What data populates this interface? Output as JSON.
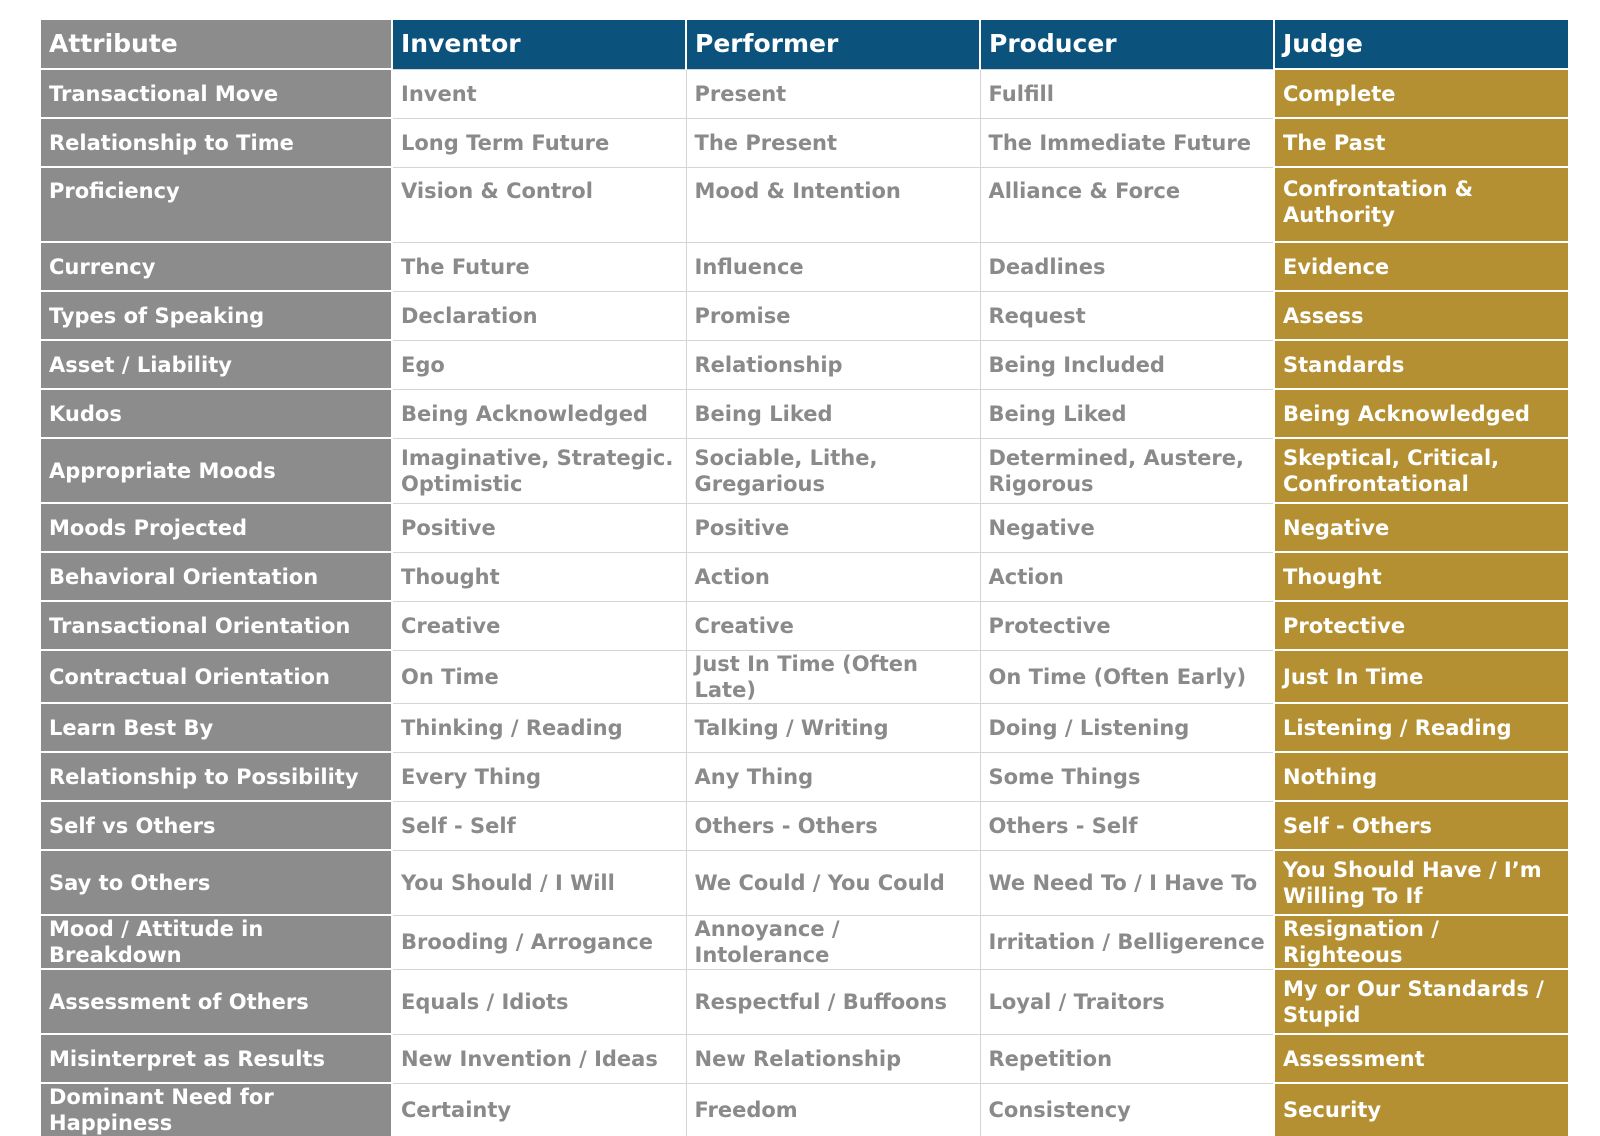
{
  "columns": {
    "attribute": "Attribute",
    "inventor": "Inventor",
    "performer": "Performer",
    "producer": "Producer",
    "judge": "Judge"
  },
  "colors": {
    "header_blue": "#0b527c",
    "attribute_grey": "#8c8c8c",
    "judge_gold": "#b49032",
    "body_text_grey": "#8a8a8a"
  },
  "rows": [
    {
      "attribute": "Transactional Move",
      "inventor": "Invent",
      "performer": "Present",
      "producer": "Fulfill",
      "judge": "Complete"
    },
    {
      "attribute": "Relationship to Time",
      "inventor": "Long Term Future",
      "performer": "The Present",
      "producer": "The Immediate Future",
      "judge": "The Past"
    },
    {
      "attribute": "Proficiency",
      "inventor": "Vision & Control",
      "performer": "Mood & Intention",
      "producer": "Alliance & Force",
      "judge": "Confrontation & Authority"
    },
    {
      "attribute": "Currency",
      "inventor": "The Future",
      "performer": "Influence",
      "producer": "Deadlines",
      "judge": "Evidence"
    },
    {
      "attribute": "Types of Speaking",
      "inventor": "Declaration",
      "performer": "Promise",
      "producer": "Request",
      "judge": "Assess"
    },
    {
      "attribute": "Asset / Liability",
      "inventor": "Ego",
      "performer": "Relationship",
      "producer": "Being Included",
      "judge": "Standards"
    },
    {
      "attribute": "Kudos",
      "inventor": "Being Acknowledged",
      "performer": "Being Liked",
      "producer": "Being Liked",
      "judge": "Being Acknowledged"
    },
    {
      "attribute": "Appropriate Moods",
      "inventor": "Imaginative, Strategic. Optimistic",
      "performer": "Sociable, Lithe, Gregarious",
      "producer": "Determined, Austere, Rigorous",
      "judge": "Skeptical, Critical, Confrontational"
    },
    {
      "attribute": "Moods Projected",
      "inventor": "Positive",
      "performer": "Positive",
      "producer": "Negative",
      "judge": "Negative"
    },
    {
      "attribute": "Behavioral Orientation",
      "inventor": "Thought",
      "performer": "Action",
      "producer": "Action",
      "judge": "Thought"
    },
    {
      "attribute": "Transactional Orientation",
      "inventor": "Creative",
      "performer": "Creative",
      "producer": "Protective",
      "judge": "Protective"
    },
    {
      "attribute": "Contractual Orientation",
      "inventor": "On Time",
      "performer": "Just In Time (Often Late)",
      "producer": "On Time (Often Early)",
      "judge": "Just In Time"
    },
    {
      "attribute": "Learn Best By",
      "inventor": "Thinking / Reading",
      "performer": "Talking / Writing",
      "producer": "Doing / Listening",
      "judge": "Listening / Reading"
    },
    {
      "attribute": "Relationship to Possibility",
      "inventor": "Every Thing",
      "performer": "Any Thing",
      "producer": "Some Things",
      "judge": "Nothing"
    },
    {
      "attribute": "Self vs Others",
      "inventor": "Self - Self",
      "performer": "Others - Others",
      "producer": "Others - Self",
      "judge": "Self - Others"
    },
    {
      "attribute": "Say to Others",
      "inventor": "You Should / I Will",
      "performer": "We Could / You Could",
      "producer": "We Need To / I Have To",
      "judge": "You Should Have / I’m Willing To If"
    },
    {
      "attribute": "Mood / Attitude in Breakdown",
      "inventor": "Brooding / Arrogance",
      "performer": "Annoyance / Intolerance",
      "producer": "Irritation / Belligerence",
      "judge": "Resignation / Righteous"
    },
    {
      "attribute": "Assessment of Others",
      "inventor": "Equals / Idiots",
      "performer": "Respectful / Buffoons",
      "producer": "Loyal / Traitors",
      "judge": "My or Our Standards / Stupid"
    },
    {
      "attribute": "Misinterpret as Results",
      "inventor": "New Invention / Ideas",
      "performer": "New Relationship",
      "producer": "Repetition",
      "judge": "Assessment"
    },
    {
      "attribute": "Dominant Need for Happiness",
      "inventor": "Certainty",
      "performer": "Freedom",
      "producer": "Consistency",
      "judge": "Security"
    }
  ]
}
